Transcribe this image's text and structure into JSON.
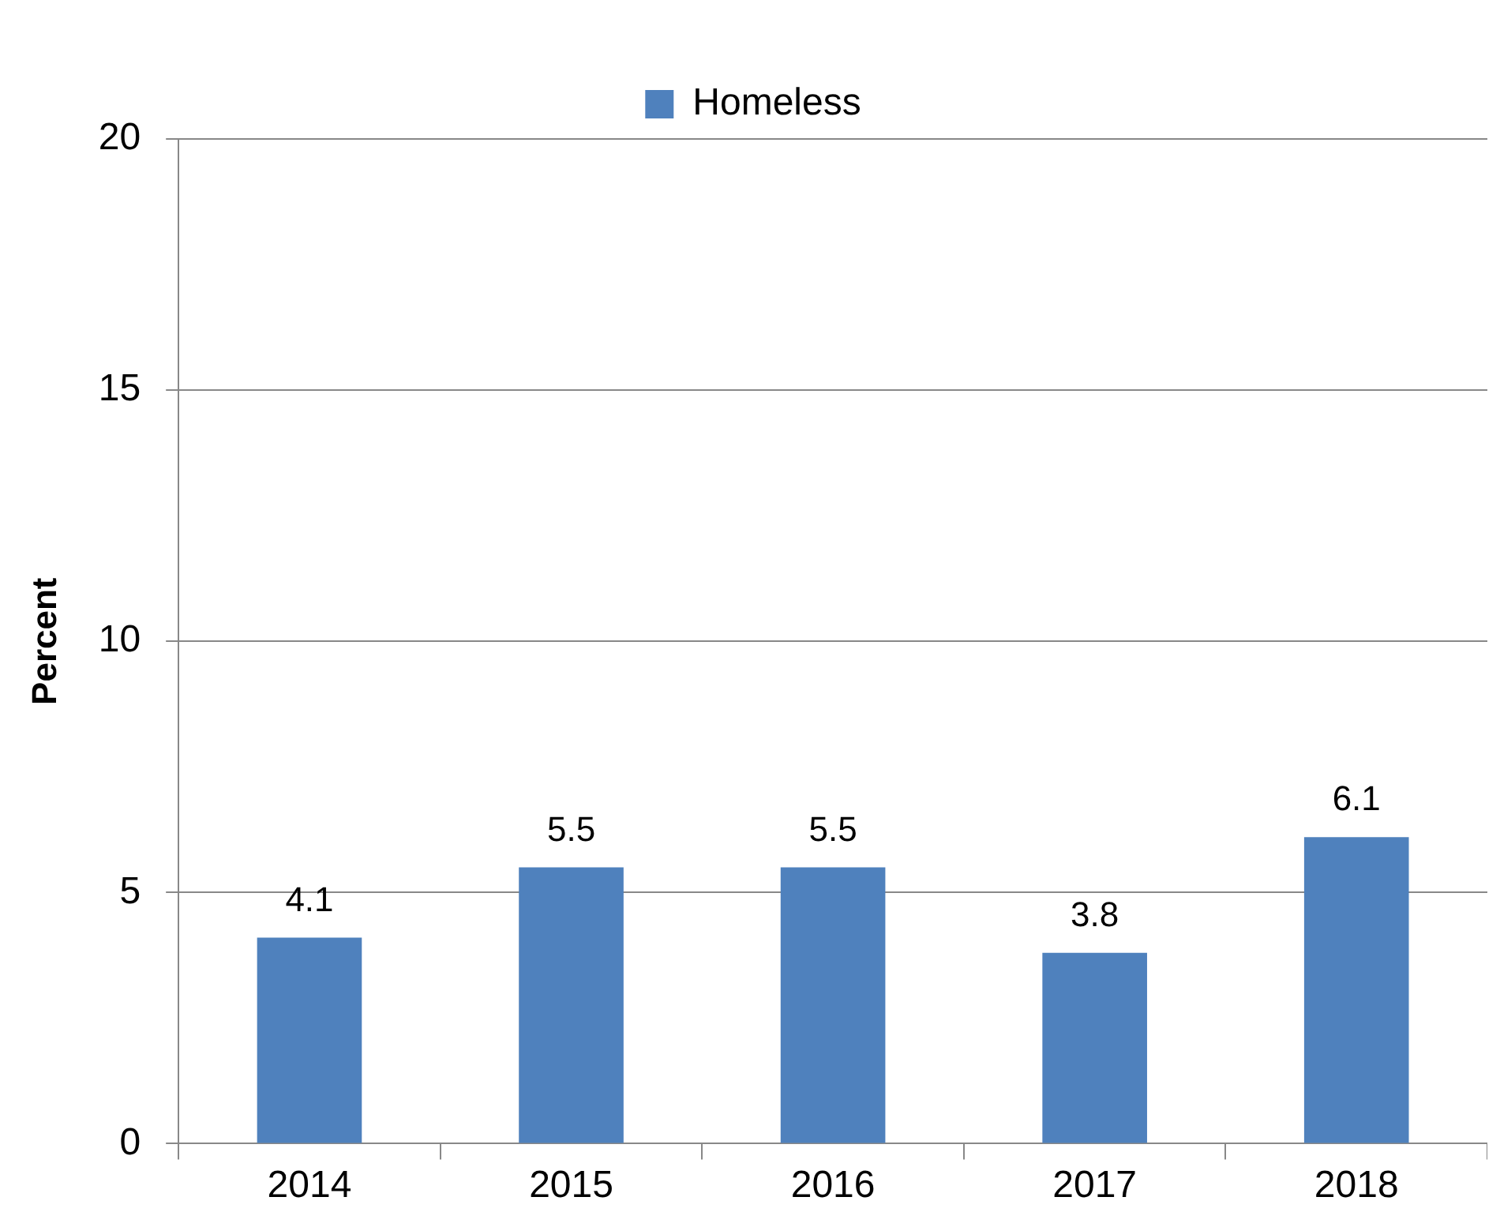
{
  "chart_data": {
    "type": "bar",
    "ylabel": "Percent",
    "categories": [
      "2014",
      "2015",
      "2016",
      "2017",
      "2018"
    ],
    "series": [
      {
        "name": "Homeless",
        "color": "#4f81bd",
        "values": [
          4.1,
          5.5,
          5.5,
          3.8,
          6.1
        ]
      }
    ],
    "ylim": [
      0,
      20
    ],
    "yticks": [
      0,
      5,
      10,
      15,
      20
    ],
    "grid": "y",
    "legend": "top",
    "data_labels": true
  }
}
